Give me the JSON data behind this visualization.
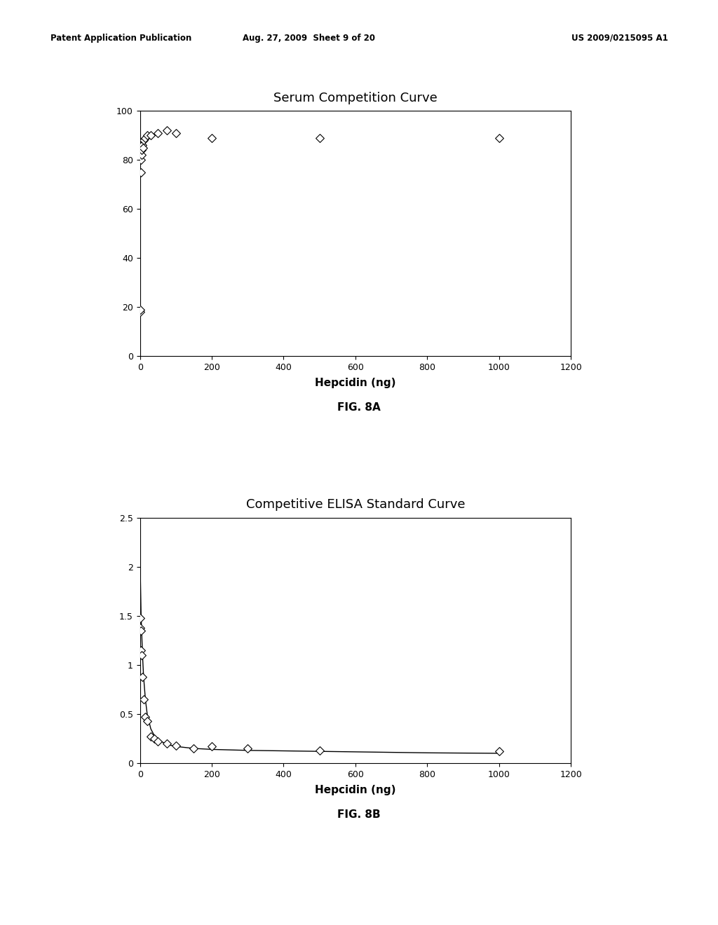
{
  "fig8a_title": "Serum Competition Curve",
  "fig8b_title": "Competitive ELISA Standard Curve",
  "xlabel": "Hepcidin (ng)",
  "fig8a_caption": "FIG. 8A",
  "fig8b_caption": "FIG. 8B",
  "fig8a_scatter_x": [
    0,
    1,
    2,
    3,
    4,
    5,
    6,
    8,
    10,
    15,
    20,
    30,
    50,
    75,
    100,
    200,
    500,
    1000
  ],
  "fig8a_scatter_y": [
    18,
    19,
    75,
    80,
    82,
    84,
    86,
    85,
    88,
    89,
    90,
    90,
    91,
    92,
    91,
    89,
    89,
    89
  ],
  "fig8a_xlim": [
    0,
    1200
  ],
  "fig8a_ylim": [
    0,
    100
  ],
  "fig8a_xticks": [
    0,
    200,
    400,
    600,
    800,
    1000,
    1200
  ],
  "fig8a_yticks": [
    0,
    20,
    40,
    60,
    80,
    100
  ],
  "fig8b_scatter_x": [
    0.5,
    1,
    2,
    3,
    5,
    7,
    10,
    15,
    20,
    30,
    40,
    50,
    75,
    100,
    150,
    200,
    300,
    500,
    1000
  ],
  "fig8b_scatter_y": [
    1.48,
    1.38,
    1.35,
    1.15,
    1.1,
    0.88,
    0.65,
    0.47,
    0.43,
    0.27,
    0.25,
    0.22,
    0.2,
    0.18,
    0.15,
    0.17,
    0.15,
    0.13,
    0.12
  ],
  "fig8b_line_x": [
    0.5,
    1,
    2,
    3,
    5,
    7,
    10,
    15,
    20,
    30,
    40,
    50,
    75,
    100,
    150,
    200,
    300,
    500,
    800,
    1000
  ],
  "fig8b_line_y": [
    2.15,
    1.9,
    1.7,
    1.5,
    1.3,
    1.1,
    0.88,
    0.65,
    0.5,
    0.35,
    0.28,
    0.24,
    0.19,
    0.17,
    0.15,
    0.14,
    0.13,
    0.12,
    0.105,
    0.1
  ],
  "fig8b_xlim": [
    0,
    1200
  ],
  "fig8b_ylim": [
    0,
    2.5
  ],
  "fig8b_xticks": [
    0,
    200,
    400,
    600,
    800,
    1000,
    1200
  ],
  "fig8b_yticks": [
    0,
    0.5,
    1.0,
    1.5,
    2.0,
    2.5
  ],
  "fig8b_yticklabels": [
    "0",
    "0.5",
    "1",
    "1.5",
    "2",
    "2.5"
  ],
  "header_left": "Patent Application Publication",
  "header_center": "Aug. 27, 2009  Sheet 9 of 20",
  "header_right": "US 2009/0215095 A1",
  "marker_style": "D",
  "marker_size": 6,
  "marker_facecolor": "white",
  "marker_edgecolor": "black",
  "line_color": "black",
  "line_width": 1.0,
  "background_color": "white",
  "text_color": "black"
}
